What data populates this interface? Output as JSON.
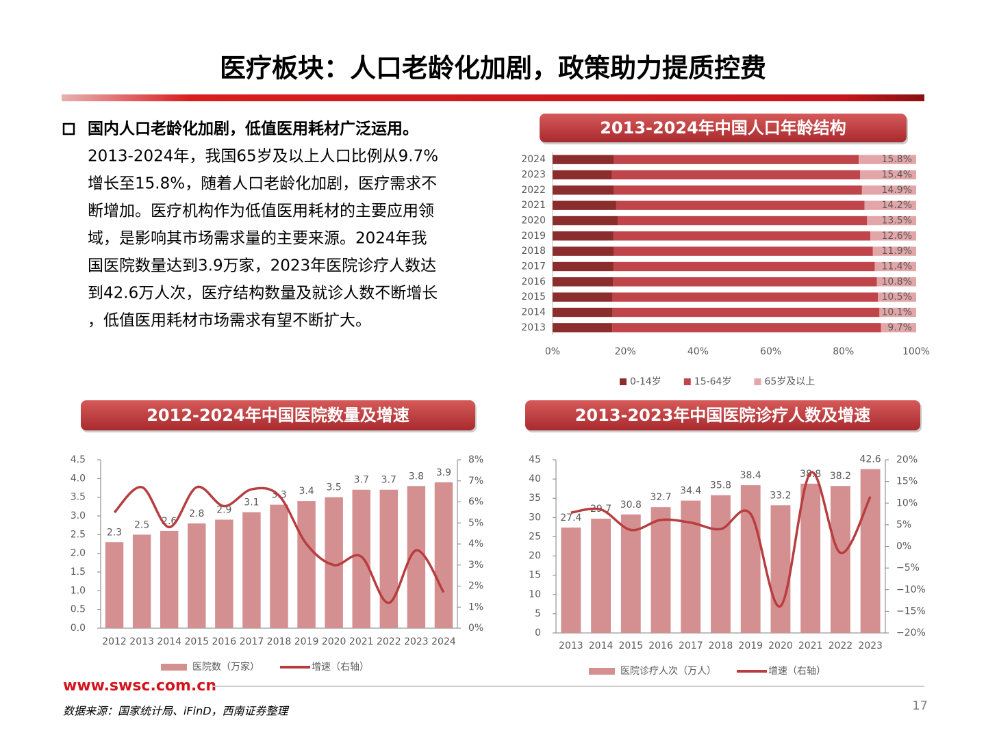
{
  "header": {
    "title": "医疗板块：人口老龄化加剧，政策助力提质控费"
  },
  "bullet": {
    "heading": "国内人口老龄化加剧，低值医用耗材广泛运用。",
    "lines": [
      "2013-2024年，我国65岁及以上人口比例从9.7%",
      "增长至15.8%，随着人口老龄化加剧，医疗需求不",
      "断增加。医疗机构作为低值医用耗材的主要应用领",
      "域，是影响其市场需求量的主要来源。2024年我",
      "国医院数量达到3.9万家，2023年医院诊疗人数达",
      "到42.6万人次，医疗结构数量及就诊人数不断增长",
      "，低值医用耗材市场需求有望不断扩大。"
    ]
  },
  "footer": {
    "website": "www.swsc.com.cn",
    "source": "数据来源：国家统计局、iFinD，西南证券整理",
    "page": "17"
  },
  "chart_data": [
    {
      "type": "stacked_bar_h",
      "title": "2013-2024年中国人口年龄结构",
      "categories": [
        "2013",
        "2014",
        "2015",
        "2016",
        "2017",
        "2018",
        "2019",
        "2020",
        "2021",
        "2022",
        "2023",
        "2024"
      ],
      "series": [
        {
          "name": "0-14岁",
          "color": "#8c2d2d",
          "values": [
            16.4,
            16.5,
            16.5,
            16.7,
            16.8,
            16.9,
            16.8,
            17.9,
            17.5,
            16.9,
            16.3,
            16.9
          ]
        },
        {
          "name": "15-64岁",
          "color": "#c0454a",
          "values": [
            73.9,
            73.4,
            73.0,
            72.5,
            71.8,
            71.2,
            70.6,
            68.6,
            68.3,
            68.2,
            68.3,
            67.3
          ]
        },
        {
          "name": "65岁及以上",
          "color": "#e3a6a8",
          "values": [
            9.7,
            10.1,
            10.5,
            10.8,
            11.4,
            11.9,
            12.6,
            13.5,
            14.2,
            14.9,
            15.4,
            15.8
          ],
          "value_labels": [
            "9.7%",
            "10.1%",
            "10.5%",
            "10.8%",
            "11.4%",
            "11.9%",
            "12.6%",
            "13.5%",
            "14.2%",
            "14.9%",
            "15.4%",
            "15.8%"
          ]
        }
      ],
      "xlim": [
        0,
        100
      ],
      "xticks": [
        {
          "value": 0,
          "label": "0%"
        },
        {
          "value": 20,
          "label": "20%"
        },
        {
          "value": 40,
          "label": "40%"
        },
        {
          "value": 60,
          "label": "60%"
        },
        {
          "value": 80,
          "label": "80%"
        },
        {
          "value": 100,
          "label": "100%"
        }
      ],
      "legend": "bottom"
    },
    {
      "type": "bar_line",
      "title": "2012-2024年中国医院数量及增速",
      "categories": [
        "2012",
        "2013",
        "2014",
        "2015",
        "2016",
        "2017",
        "2018",
        "2019",
        "2020",
        "2021",
        "2022",
        "2023",
        "2024"
      ],
      "series": [
        {
          "name": "医院数（万家）",
          "color": "#d48f91",
          "values": [
            2.3,
            2.5,
            2.6,
            2.8,
            2.9,
            3.1,
            3.3,
            3.4,
            3.5,
            3.7,
            3.7,
            3.8,
            3.9
          ]
        },
        {
          "name": "增速（右轴）",
          "color": "#b73d3f",
          "axis": "y2",
          "values": [
            5.5,
            6.7,
            4.8,
            6.7,
            5.8,
            6.6,
            6.3,
            4.0,
            3.0,
            3.4,
            1.2,
            3.7,
            1.7
          ]
        }
      ],
      "ylim": [
        0,
        4.5
      ],
      "yticks": [
        {
          "value": 0,
          "label": "0.0"
        },
        0.5,
        {
          "value": 1,
          "label": "1.0"
        },
        1.5,
        {
          "value": 2,
          "label": "2.0"
        },
        2.5,
        {
          "value": 3,
          "label": "3.0"
        },
        3.5,
        {
          "value": 4,
          "label": "4.0"
        },
        4.5
      ],
      "y2lim": [
        0,
        8
      ],
      "y2ticks": [
        {
          "value": 0,
          "label": "0%"
        },
        {
          "value": 1,
          "label": "1%"
        },
        {
          "value": 2,
          "label": "2%"
        },
        {
          "value": 3,
          "label": "3%"
        },
        {
          "value": 4,
          "label": "4%"
        },
        {
          "value": 5,
          "label": "5%"
        },
        {
          "value": 6,
          "label": "6%"
        },
        {
          "value": 7,
          "label": "7%"
        },
        {
          "value": 8,
          "label": "8%"
        }
      ],
      "legend": "bottom"
    },
    {
      "type": "bar_line",
      "title": "2013-2023年中国医院诊疗人数及增速",
      "categories": [
        "2013",
        "2014",
        "2015",
        "2016",
        "2017",
        "2018",
        "2019",
        "2020",
        "2021",
        "2022",
        "2023"
      ],
      "series": [
        {
          "name": "医院诊疗人次（万人）",
          "color": "#d48f91",
          "values": [
            27.4,
            29.7,
            30.8,
            32.7,
            34.4,
            35.8,
            38.4,
            33.2,
            38.8,
            38.2,
            42.6
          ]
        },
        {
          "name": "增速（右轴）",
          "color": "#b73d3f",
          "axis": "y2",
          "values": [
            7.8,
            8.5,
            3.8,
            6.1,
            5.5,
            4.0,
            7.5,
            -13.8,
            17.0,
            -1.5,
            11.5
          ]
        }
      ],
      "ylim": [
        0,
        45
      ],
      "yticks": [
        0,
        5,
        10,
        15,
        20,
        25,
        30,
        35,
        40,
        45
      ],
      "y2lim": [
        -20,
        20
      ],
      "y2ticks": [
        {
          "value": -20,
          "label": "−20%"
        },
        {
          "value": -15,
          "label": "−15%"
        },
        {
          "value": -10,
          "label": "−10%"
        },
        {
          "value": -5,
          "label": "−5%"
        },
        {
          "value": 0,
          "label": "0%"
        },
        {
          "value": 5,
          "label": "5%"
        },
        {
          "value": 10,
          "label": "10%"
        },
        {
          "value": 15,
          "label": "15%"
        },
        {
          "value": 20,
          "label": "20%"
        }
      ],
      "legend": "bottom"
    }
  ]
}
